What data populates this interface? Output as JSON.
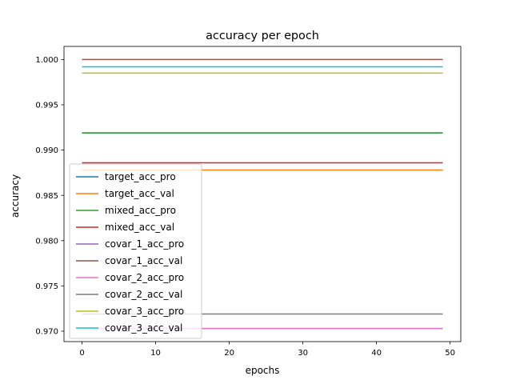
{
  "chart_data": {
    "type": "line",
    "title": "accuracy per epoch",
    "xlabel": "epochs",
    "ylabel": "accuracy",
    "xlim": [
      -2.45,
      51.45
    ],
    "ylim": [
      0.96885,
      1.00145
    ],
    "xticks": [
      0,
      10,
      20,
      30,
      40,
      50
    ],
    "yticks": [
      0.97,
      0.975,
      0.98,
      0.985,
      0.99,
      0.995,
      1.0
    ],
    "x_range": [
      0,
      49
    ],
    "grid": false,
    "legend_position": "lower-left",
    "series": [
      {
        "name": "target_acc_pro",
        "color": "#1f77b4",
        "y": 0.9919
      },
      {
        "name": "target_acc_val",
        "color": "#ff7f0e",
        "y": 0.9878
      },
      {
        "name": "mixed_acc_pro",
        "color": "#2ca02c",
        "y": 0.9919
      },
      {
        "name": "mixed_acc_val",
        "color": "#d62728",
        "y": 0.9886
      },
      {
        "name": "covar_1_acc_pro",
        "color": "#9467bd",
        "y": 0.9703
      },
      {
        "name": "covar_1_acc_val",
        "color": "#8c564b",
        "y": 1.0
      },
      {
        "name": "covar_2_acc_pro",
        "color": "#e377c2",
        "y": 0.9703
      },
      {
        "name": "covar_2_acc_val",
        "color": "#7f7f7f",
        "y": 0.9719
      },
      {
        "name": "covar_3_acc_pro",
        "color": "#bcbd22",
        "y": 0.9985
      },
      {
        "name": "covar_3_acc_val",
        "color": "#17becf",
        "y": 0.9992
      }
    ]
  }
}
